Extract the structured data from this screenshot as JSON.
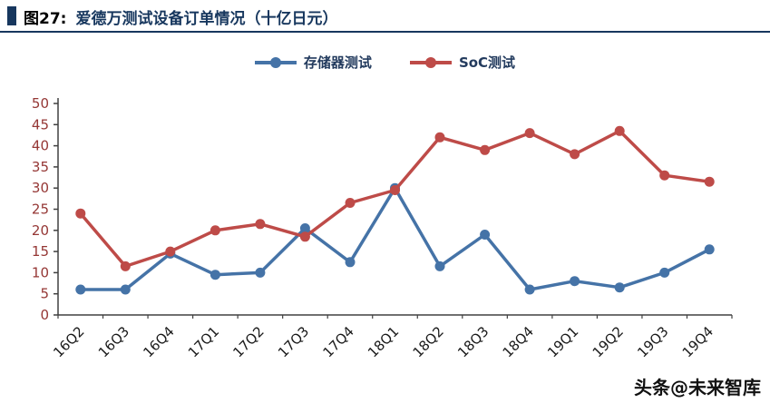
{
  "header": {
    "prefix": "图27:",
    "title": "爱德万测试设备订单情况（十亿日元）",
    "accent_color": "#17375E"
  },
  "legend": [
    {
      "label": "存储器测试",
      "color": "#4573A7"
    },
    {
      "label": "SoC测试",
      "color": "#BE4B48"
    }
  ],
  "watermark": "头条@未来智库",
  "chart_data": {
    "type": "line",
    "title": "爱德万测试设备订单情况（十亿日元）",
    "categories": [
      "16Q2",
      "16Q3",
      "16Q4",
      "17Q1",
      "17Q2",
      "17Q3",
      "17Q4",
      "18Q1",
      "18Q2",
      "18Q3",
      "18Q4",
      "19Q1",
      "19Q2",
      "19Q3",
      "19Q4"
    ],
    "series": [
      {
        "name": "存储器测试",
        "color": "#4573A7",
        "values": [
          6,
          6,
          14.5,
          9.5,
          10,
          20.5,
          12.5,
          30,
          11.5,
          19,
          6,
          8,
          6.5,
          10,
          15.5
        ]
      },
      {
        "name": "SoC测试",
        "color": "#BE4B48",
        "values": [
          24,
          11.5,
          15,
          20,
          21.5,
          18.5,
          26.5,
          29.5,
          42,
          39,
          43,
          38,
          43.5,
          33,
          31.5
        ]
      }
    ],
    "xlabel": "",
    "ylabel": "",
    "ylim": [
      0,
      50
    ],
    "ytick_step": 5,
    "ytick_color": "#953735",
    "xtick_color": "#1a1a1a",
    "axis_color": "#404040",
    "xtick_rotation": -45,
    "grid": false,
    "legend_position": "top"
  }
}
